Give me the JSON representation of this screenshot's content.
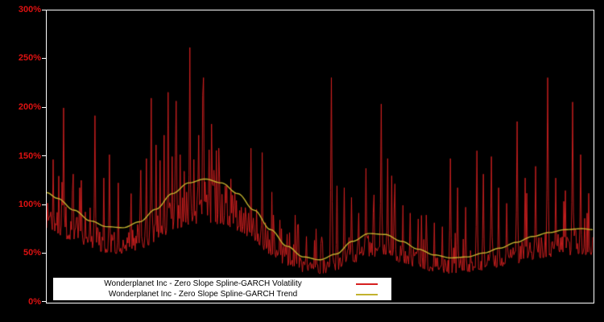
{
  "chart": {
    "background": "#000000",
    "plot_border_color": "#ffffff",
    "tick_label_color": "#dd1111",
    "tick_mark_color": "#ffffff"
  },
  "chart_data": {
    "type": "line",
    "title": "",
    "xlabel": "",
    "ylabel": "",
    "ylim": [
      0,
      300
    ],
    "yticks": [
      "0%",
      "50%",
      "100%",
      "150%",
      "200%",
      "250%",
      "300%"
    ],
    "grid": false,
    "legend_position": "bottom-center",
    "legend": [
      {
        "label": "Wonderplanet Inc - Zero Slope Spline-GARCH Volatility",
        "color": "#d62020"
      },
      {
        "label": "Wonderplanet Inc - Zero Slope Spline-GARCH Trend",
        "color": "#c2b22e"
      }
    ],
    "series": [
      {
        "name": "volatility",
        "color": "#d62020",
        "style": "spiky"
      },
      {
        "name": "trend",
        "color": "#c2b22e",
        "style": "smooth"
      }
    ],
    "trend_points": [
      [
        0.0,
        113
      ],
      [
        0.02,
        107
      ],
      [
        0.05,
        95
      ],
      [
        0.08,
        84
      ],
      [
        0.11,
        78
      ],
      [
        0.14,
        77
      ],
      [
        0.17,
        83
      ],
      [
        0.2,
        96
      ],
      [
        0.23,
        112
      ],
      [
        0.26,
        123
      ],
      [
        0.29,
        127
      ],
      [
        0.32,
        123
      ],
      [
        0.35,
        112
      ],
      [
        0.38,
        95
      ],
      [
        0.41,
        75
      ],
      [
        0.44,
        58
      ],
      [
        0.47,
        47
      ],
      [
        0.5,
        44
      ],
      [
        0.53,
        50
      ],
      [
        0.56,
        63
      ],
      [
        0.59,
        71
      ],
      [
        0.62,
        70
      ],
      [
        0.65,
        63
      ],
      [
        0.68,
        55
      ],
      [
        0.71,
        49
      ],
      [
        0.74,
        46
      ],
      [
        0.77,
        47
      ],
      [
        0.8,
        51
      ],
      [
        0.83,
        56
      ],
      [
        0.86,
        62
      ],
      [
        0.89,
        68
      ],
      [
        0.92,
        72
      ],
      [
        0.95,
        75
      ],
      [
        0.98,
        76
      ],
      [
        1.0,
        75
      ]
    ],
    "volatility_spikes": [
      [
        0.012,
        147
      ],
      [
        0.022,
        130
      ],
      [
        0.031,
        200
      ],
      [
        0.048,
        132
      ],
      [
        0.06,
        118
      ],
      [
        0.088,
        192
      ],
      [
        0.104,
        128
      ],
      [
        0.115,
        152
      ],
      [
        0.131,
        123
      ],
      [
        0.155,
        112
      ],
      [
        0.172,
        136
      ],
      [
        0.183,
        148
      ],
      [
        0.192,
        210
      ],
      [
        0.2,
        162
      ],
      [
        0.208,
        146
      ],
      [
        0.215,
        172
      ],
      [
        0.222,
        216
      ],
      [
        0.23,
        150
      ],
      [
        0.237,
        207
      ],
      [
        0.245,
        152
      ],
      [
        0.252,
        135
      ],
      [
        0.262,
        262
      ],
      [
        0.27,
        147
      ],
      [
        0.278,
        172
      ],
      [
        0.287,
        231
      ],
      [
        0.297,
        157
      ],
      [
        0.306,
        136
      ],
      [
        0.317,
        128
      ],
      [
        0.33,
        121
      ],
      [
        0.345,
        112
      ],
      [
        0.356,
        98
      ],
      [
        0.37,
        92
      ],
      [
        0.385,
        96
      ],
      [
        0.4,
        82
      ],
      [
        0.415,
        90
      ],
      [
        0.43,
        76
      ],
      [
        0.445,
        72
      ],
      [
        0.46,
        80
      ],
      [
        0.475,
        68
      ],
      [
        0.49,
        64
      ],
      [
        0.505,
        62
      ],
      [
        0.522,
        231
      ],
      [
        0.532,
        120
      ],
      [
        0.545,
        118
      ],
      [
        0.558,
        108
      ],
      [
        0.572,
        92
      ],
      [
        0.585,
        138
      ],
      [
        0.598,
        92
      ],
      [
        0.613,
        204
      ],
      [
        0.625,
        148
      ],
      [
        0.638,
        122
      ],
      [
        0.652,
        100
      ],
      [
        0.665,
        92
      ],
      [
        0.68,
        86
      ],
      [
        0.695,
        90
      ],
      [
        0.71,
        82
      ],
      [
        0.725,
        78
      ],
      [
        0.74,
        148
      ],
      [
        0.753,
        118
      ],
      [
        0.768,
        98
      ],
      [
        0.788,
        156
      ],
      [
        0.8,
        132
      ],
      [
        0.814,
        150
      ],
      [
        0.828,
        118
      ],
      [
        0.843,
        102
      ],
      [
        0.862,
        186
      ],
      [
        0.877,
        128
      ],
      [
        0.895,
        140
      ],
      [
        0.918,
        231
      ],
      [
        0.932,
        128
      ],
      [
        0.947,
        104
      ],
      [
        0.963,
        206
      ],
      [
        0.978,
        152
      ],
      [
        0.99,
        92
      ]
    ],
    "volatility_noise": {
      "seed": 1337,
      "base_factor": 0.65,
      "noise_factor": 0.35,
      "medium_spike_prob": 0.06,
      "min_value": 30,
      "max_value": 265
    },
    "n_samples": 680
  }
}
